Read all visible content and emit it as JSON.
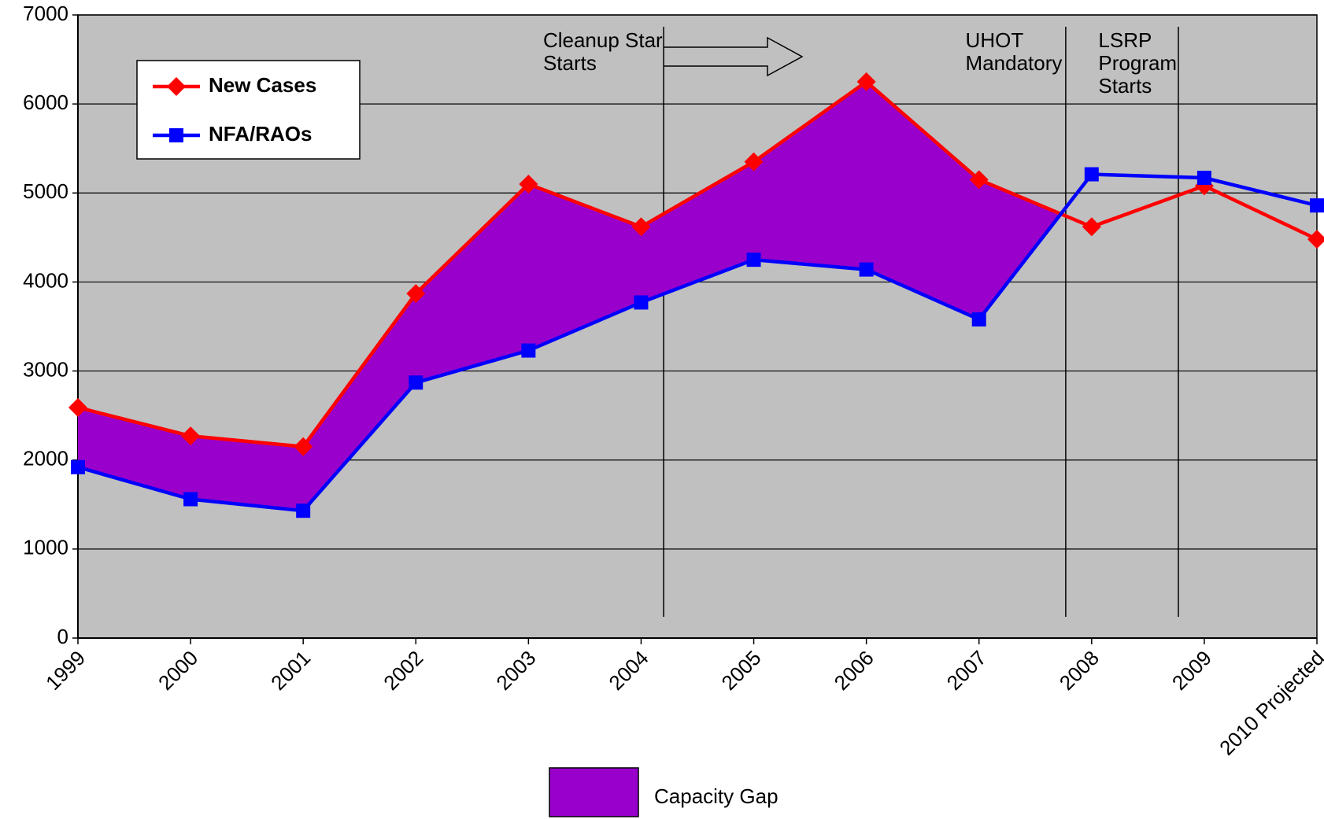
{
  "chart_data": {
    "type": "line",
    "categories": [
      "1999",
      "2000",
      "2001",
      "2002",
      "2003",
      "2004",
      "2005",
      "2006",
      "2007",
      "2008",
      "2009",
      "2010 Projected"
    ],
    "series": [
      {
        "name": "New Cases",
        "color": "#ff0000",
        "marker": "diamond",
        "values": [
          2590,
          2270,
          2150,
          3870,
          5100,
          4620,
          5350,
          6250,
          5150,
          4620,
          5080,
          4480
        ]
      },
      {
        "name": "NFA/RAOs",
        "color": "#0000ff",
        "marker": "square",
        "values": [
          1920,
          1560,
          1430,
          2870,
          3230,
          3770,
          4250,
          4140,
          3580,
          5210,
          5170,
          4860
        ]
      }
    ],
    "gap": {
      "name": "Capacity Gap",
      "color": "#9900cc"
    },
    "annotations": [
      {
        "lines": [
          "Cleanup Star",
          "Starts"
        ]
      },
      {
        "lines": [
          "UHOT",
          "Mandatory"
        ]
      },
      {
        "lines": [
          "LSRP",
          "Program",
          "Starts"
        ]
      }
    ],
    "ylim": [
      0,
      7000
    ],
    "yticks": [
      0,
      1000,
      2000,
      3000,
      4000,
      5000,
      6000,
      7000
    ],
    "grid": true,
    "legend": "upper left"
  }
}
